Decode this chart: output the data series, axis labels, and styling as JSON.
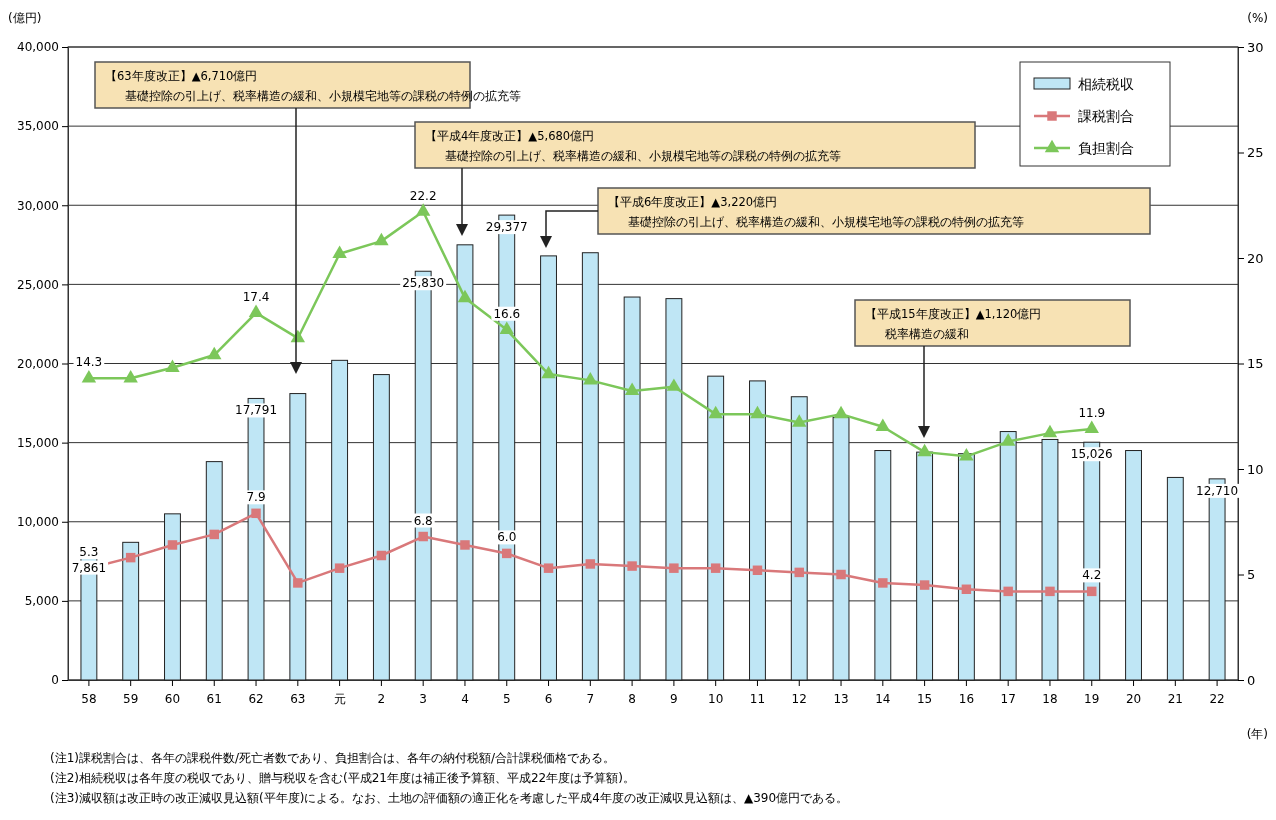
{
  "chart_data": {
    "type": "bar",
    "ylabel": "(億円)",
    "y2label": "(%)",
    "xlabel": "(年)",
    "categories": [
      "58",
      "59",
      "60",
      "61",
      "62",
      "63",
      "元",
      "2",
      "3",
      "4",
      "5",
      "6",
      "7",
      "8",
      "9",
      "10",
      "11",
      "12",
      "13",
      "14",
      "15",
      "16",
      "17",
      "18",
      "19",
      "20",
      "21",
      "22"
    ],
    "series": [
      {
        "name": "相続税収",
        "color": "#bfe6f5",
        "values": [
          7861,
          8700,
          10500,
          13800,
          17791,
          18100,
          20200,
          19300,
          25830,
          27500,
          29377,
          26800,
          27000,
          24200,
          24100,
          19200,
          18900,
          17900,
          16600,
          14500,
          14400,
          14300,
          15700,
          15200,
          15026,
          14500,
          12800,
          12710
        ],
        "value_labels": [
          "7,861",
          null,
          null,
          null,
          "17,791",
          null,
          null,
          null,
          "25,830",
          null,
          "29,377",
          null,
          null,
          null,
          null,
          null,
          null,
          null,
          null,
          null,
          null,
          null,
          null,
          null,
          "15,026",
          null,
          null,
          "12,710"
        ]
      },
      {
        "name": "課税割合",
        "type": "line",
        "axis": "y2",
        "color": "#d9787a",
        "marker": "square",
        "values": [
          5.3,
          5.8,
          6.4,
          6.9,
          7.9,
          4.6,
          5.3,
          5.9,
          6.8,
          6.4,
          6.0,
          5.3,
          5.5,
          5.4,
          5.3,
          5.3,
          5.2,
          5.1,
          5.0,
          4.6,
          4.5,
          4.3,
          4.2,
          4.2,
          4.2,
          null,
          null,
          null
        ],
        "value_labels": [
          "5.3",
          null,
          null,
          null,
          "7.9",
          null,
          null,
          null,
          "6.8",
          null,
          "6.0",
          null,
          null,
          null,
          null,
          null,
          null,
          null,
          null,
          null,
          null,
          null,
          null,
          null,
          "4.2",
          null,
          null,
          null
        ]
      },
      {
        "name": "負担割合",
        "type": "line",
        "axis": "y2",
        "color": "#7cc75a",
        "marker": "triangle",
        "values": [
          14.3,
          14.3,
          14.8,
          15.4,
          17.4,
          16.2,
          20.2,
          20.8,
          22.2,
          18.1,
          16.6,
          14.5,
          14.2,
          13.7,
          13.9,
          12.6,
          12.6,
          12.2,
          12.6,
          12.0,
          10.8,
          10.6,
          11.3,
          11.7,
          11.9,
          null,
          null,
          null
        ],
        "value_labels": [
          "14.3",
          null,
          null,
          null,
          "17.4",
          null,
          null,
          null,
          "22.2",
          null,
          "16.6",
          null,
          null,
          null,
          null,
          null,
          null,
          null,
          null,
          null,
          null,
          null,
          null,
          null,
          "11.9",
          null,
          null,
          null
        ]
      }
    ],
    "ylim": [
      0,
      40000
    ],
    "yticks": [
      {
        "value": 0,
        "label": "0"
      },
      {
        "value": 5000,
        "label": "5,000"
      },
      {
        "value": 10000,
        "label": "10,000"
      },
      {
        "value": 15000,
        "label": "15,000"
      },
      {
        "value": 20000,
        "label": "20,000"
      },
      {
        "value": 25000,
        "label": "25,000"
      },
      {
        "value": 30000,
        "label": "30,000"
      },
      {
        "value": 35000,
        "label": "35,000"
      },
      {
        "value": 40000,
        "label": "40,000"
      }
    ],
    "y2lim": [
      0,
      30
    ],
    "y2ticks": [
      0,
      5,
      10,
      15,
      20,
      25,
      30
    ],
    "grid": "y",
    "legend": "top right",
    "annotations": [
      "【63年度改正】▲6,710億円",
      "基礎控除の引上げ、税率構造の緩和、小規模宅地等の課税の特例の拡充等",
      "【平成4年度改正】▲5,680億円",
      "基礎控除の引上げ、税率構造の緩和、小規模宅地等の課税の特例の拡充等",
      "【平成6年度改正】▲3,220億円",
      "基礎控除の引上げ、税率構造の緩和、小規模宅地等の課税の特例の拡充等",
      "【平成15年度改正】▲1,120億円",
      "税率構造の緩和",
      "(注1)課税割合は、各年の課税件数/死亡者数であり、負担割合は、各年の納付税額/合計課税価格である。",
      "(注2)相続税収は各年度の税収であり、贈与税収を含む(平成21年度は補正後予算額、平成22年度は予算額)。",
      "(注3)減収額は改正時の改正減収見込額(平年度)による。なお、土地の評価額の適正化を考慮した平成4年度の改正減収見込額は、▲390億円である。"
    ]
  }
}
